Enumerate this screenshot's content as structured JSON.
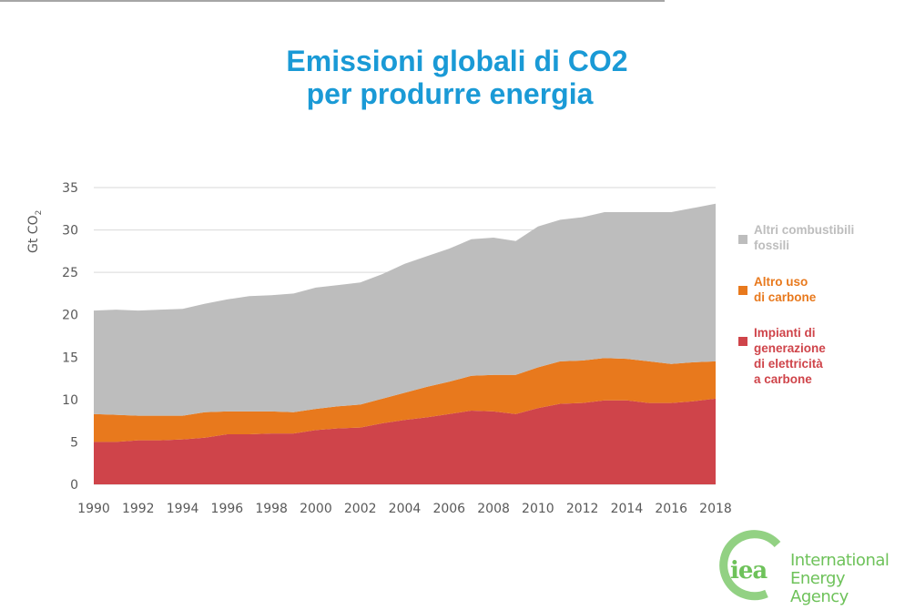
{
  "title": {
    "line1": "Emissioni globali di CO2",
    "line2": "per produrre energia"
  },
  "colors": {
    "title": "#1a9ad6",
    "other_fossil": "#bdbdbd",
    "other_coal": "#e8791d",
    "coal_power": "#cf444a",
    "grid": "#d9d9d9",
    "axis_text": "#595959",
    "logo": "#6ec25a"
  },
  "legend": [
    {
      "label_lines": [
        "Altri combustibili",
        "fossili"
      ],
      "color_key": "other_fossil"
    },
    {
      "label_lines": [
        "Altro uso",
        "di carbone"
      ],
      "color_key": "other_coal"
    },
    {
      "label_lines": [
        "Impianti di",
        "generazione",
        "di elettricità",
        "a carbone"
      ],
      "color_key": "coal_power"
    }
  ],
  "logo": {
    "mark": "iea",
    "line1": "International",
    "line2": "Energy Agency"
  },
  "chart_data": {
    "type": "area",
    "stacked": true,
    "title": "Emissioni globali di CO2 per produrre energia",
    "xlabel": "",
    "ylabel": "Gt CO2",
    "ylim": [
      0,
      35
    ],
    "yticks": [
      0,
      5,
      10,
      15,
      20,
      25,
      30,
      35
    ],
    "xlim": [
      1990,
      2018
    ],
    "xticks": [
      1990,
      1992,
      1994,
      1996,
      1998,
      2000,
      2002,
      2004,
      2006,
      2008,
      2010,
      2012,
      2014,
      2016,
      2018
    ],
    "grid": true,
    "legend_position": "right",
    "x": [
      1990,
      1991,
      1992,
      1993,
      1994,
      1995,
      1996,
      1997,
      1998,
      1999,
      2000,
      2001,
      2002,
      2003,
      2004,
      2005,
      2006,
      2007,
      2008,
      2009,
      2010,
      2011,
      2012,
      2013,
      2014,
      2015,
      2016,
      2017,
      2018
    ],
    "series": [
      {
        "name": "Impianti di generazione di elettricità a carbone",
        "color_key": "coal_power",
        "values": [
          5.0,
          5.0,
          5.2,
          5.2,
          5.3,
          5.5,
          5.9,
          5.9,
          6.0,
          6.0,
          6.4,
          6.6,
          6.7,
          7.2,
          7.6,
          7.9,
          8.3,
          8.7,
          8.6,
          8.3,
          9.0,
          9.5,
          9.6,
          9.9,
          9.9,
          9.6,
          9.6,
          9.8,
          10.1
        ]
      },
      {
        "name": "Altro uso di carbone",
        "color_key": "other_coal",
        "values": [
          3.3,
          3.2,
          2.9,
          2.9,
          2.8,
          3.0,
          2.7,
          2.7,
          2.6,
          2.5,
          2.5,
          2.6,
          2.7,
          2.9,
          3.2,
          3.6,
          3.8,
          4.1,
          4.3,
          4.6,
          4.8,
          5.0,
          5.0,
          5.0,
          4.9,
          4.9,
          4.6,
          4.6,
          4.4
        ]
      },
      {
        "name": "Altri combustibili fossili",
        "color_key": "other_fossil",
        "values": [
          12.2,
          12.4,
          12.4,
          12.5,
          12.6,
          12.8,
          13.2,
          13.6,
          13.7,
          14.0,
          14.3,
          14.3,
          14.4,
          14.7,
          15.2,
          15.4,
          15.7,
          16.1,
          16.2,
          15.8,
          16.6,
          16.7,
          16.9,
          17.2,
          17.3,
          17.6,
          17.9,
          18.2,
          18.6
        ]
      }
    ]
  }
}
